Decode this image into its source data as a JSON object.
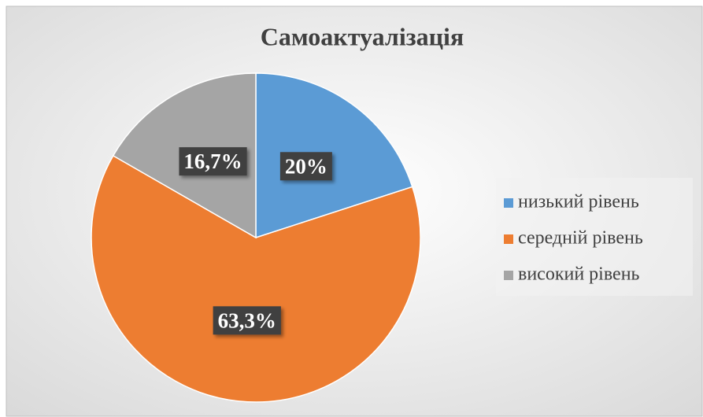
{
  "chart_data": {
    "type": "pie",
    "title": "Самоактуалізація",
    "categories": [
      "низький рівень",
      "середній рівень",
      "високий рівень"
    ],
    "values": [
      20,
      63.3,
      16.7
    ],
    "value_labels": [
      "20%",
      "63,3%",
      "16,7%"
    ],
    "colors": [
      "#5b9bd5",
      "#ed7d31",
      "#a5a5a5"
    ],
    "legend": "right"
  }
}
